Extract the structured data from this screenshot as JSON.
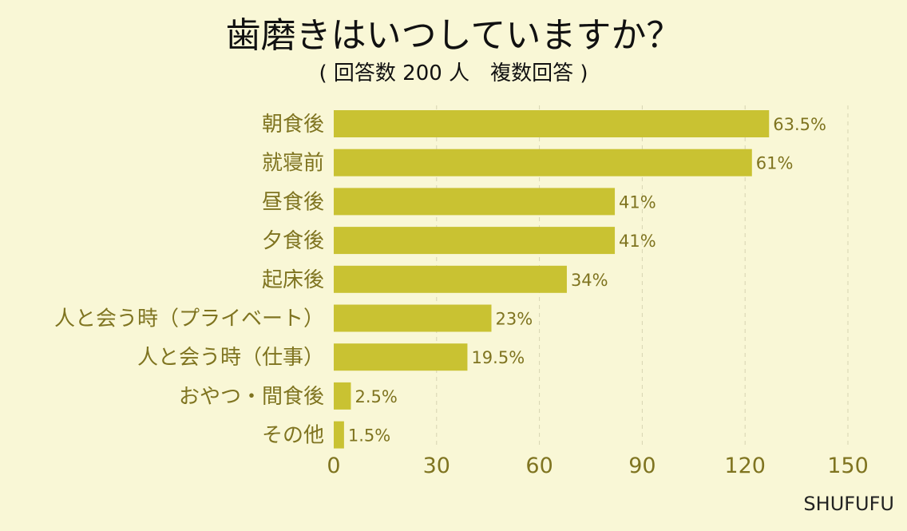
{
  "chart_data": {
    "type": "bar",
    "orientation": "horizontal",
    "title": "歯磨きはいつしていますか？",
    "subtitle": "( 回答数 200 人　複数回答 )",
    "categories": [
      "朝食後",
      "就寝前",
      "昼食後",
      "夕食後",
      "起床後",
      "人と会う時（プライベート）",
      "人と会う時（仕事）",
      "おやつ・間食後",
      "その他"
    ],
    "values": [
      127,
      122,
      82,
      82,
      68,
      46,
      39,
      5,
      3
    ],
    "value_labels": [
      "63.5%",
      "61%",
      "41%",
      "41%",
      "34%",
      "23%",
      "19.5%",
      "2.5%",
      "1.5%"
    ],
    "xlim": [
      0,
      150
    ],
    "xticks": [
      "0",
      "30",
      "60",
      "90",
      "120",
      "150"
    ],
    "grid": true,
    "bar_color": "#c9c232"
  },
  "brand": "SHUFUFU"
}
